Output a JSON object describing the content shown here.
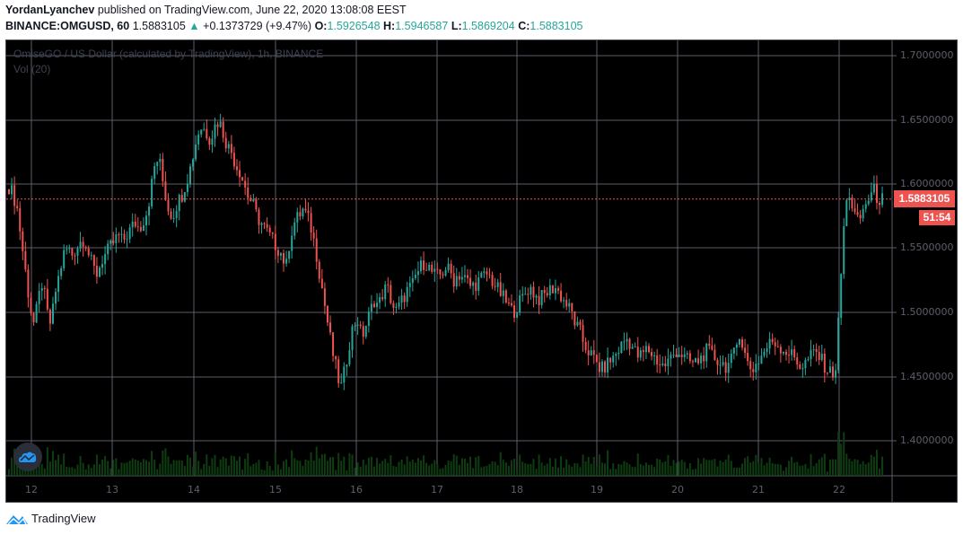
{
  "header": {
    "author": "YordanLyanchev",
    "published_text": "published on TradingView.com, June 22, 2020 13:08:08 EEST",
    "symbol": "BINANCE:OMGUSD, 60",
    "last": "1.5883105",
    "change": "+0.1373729 (+9.47%)",
    "o_label": "O:",
    "o": "1.5926548",
    "h_label": "H:",
    "h": "1.5946587",
    "l_label": "L:",
    "l": "1.5869204",
    "c_label": "C:",
    "c": "1.5883105",
    "up_arrow": "▲"
  },
  "legend": {
    "series_title": "OmiseGO / US Dollar (calculated by TradingView), 1h, BINANCE",
    "volume_title": "Vol (20)"
  },
  "price_axis": {
    "ticks": [
      "1.7000000",
      "1.6500000",
      "1.6000000",
      "1.5500000",
      "1.5000000",
      "1.4500000",
      "1.4000000"
    ],
    "last_price_label": "1.5883105",
    "countdown": "51:54"
  },
  "time_axis": {
    "ticks": [
      "12",
      "13",
      "14",
      "15",
      "16",
      "17",
      "18",
      "19",
      "20",
      "21",
      "22"
    ]
  },
  "colors": {
    "up": "#26a69a",
    "down": "#ef5350",
    "grid": "#5d5d6a",
    "background": "#000000",
    "volume": "#0f3d12"
  },
  "footer": {
    "brand": "TradingView"
  },
  "chart_data": {
    "type": "candlestick",
    "title": "OmiseGO / US Dollar (calculated by TradingView), 1h, BINANCE",
    "symbol": "BINANCE:OMGUSD",
    "interval": "60",
    "xlabel": "",
    "ylabel": "",
    "ylim": [
      1.37,
      1.72
    ],
    "x_ticks": [
      "12",
      "13",
      "14",
      "15",
      "16",
      "17",
      "18",
      "19",
      "20",
      "21",
      "22"
    ],
    "y_ticks": [
      1.7,
      1.65,
      1.6,
      1.55,
      1.5,
      1.45,
      1.4
    ],
    "grid": true,
    "last_price": 1.5883105,
    "ohlc_last": {
      "open": 1.5926548,
      "high": 1.5946587,
      "low": 1.5869204,
      "close": 1.5883105
    },
    "change": 0.1373729,
    "change_pct": 9.47,
    "volume_indicator": "Vol (20)",
    "approx_closes_by_day": [
      {
        "day": "12",
        "close": 1.545
      },
      {
        "day": "13",
        "close": 1.575
      },
      {
        "day": "14",
        "close": 1.625
      },
      {
        "day": "15",
        "close": 1.545
      },
      {
        "day": "16",
        "close": 1.525
      },
      {
        "day": "17",
        "close": 1.528
      },
      {
        "day": "18",
        "close": 1.515
      },
      {
        "day": "19",
        "close": 1.465
      },
      {
        "day": "20",
        "close": 1.462
      },
      {
        "day": "21",
        "close": 1.475
      },
      {
        "day": "22",
        "close": 1.588
      }
    ],
    "path": [
      1.598,
      1.592,
      1.58,
      1.555,
      1.53,
      1.505,
      1.49,
      1.51,
      1.525,
      1.5,
      1.49,
      1.515,
      1.53,
      1.545,
      1.55,
      1.545,
      1.55,
      1.555,
      1.558,
      1.545,
      1.535,
      1.53,
      1.54,
      1.545,
      1.55,
      1.555,
      1.56,
      1.555,
      1.56,
      1.565,
      1.57,
      1.565,
      1.572,
      1.58,
      1.6,
      1.62,
      1.615,
      1.595,
      1.58,
      1.575,
      1.585,
      1.59,
      1.6,
      1.61,
      1.625,
      1.64,
      1.645,
      1.64,
      1.635,
      1.645,
      1.65,
      1.64,
      1.63,
      1.625,
      1.615,
      1.61,
      1.6,
      1.59,
      1.585,
      1.575,
      1.57,
      1.565,
      1.56,
      1.555,
      1.55,
      1.545,
      1.535,
      1.56,
      1.57,
      1.575,
      1.58,
      1.575,
      1.565,
      1.55,
      1.53,
      1.51,
      1.49,
      1.47,
      1.455,
      1.44,
      1.455,
      1.475,
      1.49,
      1.495,
      1.48,
      1.49,
      1.5,
      1.51,
      1.505,
      1.515,
      1.52,
      1.51,
      1.5,
      1.505,
      1.512,
      1.518,
      1.52,
      1.53,
      1.535,
      1.54,
      1.535,
      1.53,
      1.528,
      1.53,
      1.535,
      1.532,
      1.525,
      1.53,
      1.528,
      1.525,
      1.52,
      1.522,
      1.525,
      1.528,
      1.53,
      1.525,
      1.52,
      1.515,
      1.51,
      1.505,
      1.5,
      1.505,
      1.51,
      1.515,
      1.52,
      1.515,
      1.51,
      1.512,
      1.515,
      1.518,
      1.52,
      1.515,
      1.51,
      1.505,
      1.5,
      1.49,
      1.485,
      1.475,
      1.47,
      1.465,
      1.46,
      1.455,
      1.458,
      1.462,
      1.465,
      1.47,
      1.475,
      1.48,
      1.476,
      1.47,
      1.465,
      1.468,
      1.472,
      1.468,
      1.464,
      1.46,
      1.458,
      1.462,
      1.466,
      1.47,
      1.468,
      1.464,
      1.462,
      1.46,
      1.462,
      1.465,
      1.47,
      1.468,
      1.465,
      1.462,
      1.46,
      1.458,
      1.462,
      1.47,
      1.485,
      1.47,
      1.46,
      1.455,
      1.46,
      1.465,
      1.47,
      1.475,
      1.478,
      1.475,
      1.472,
      1.47,
      1.468,
      1.465,
      1.46,
      1.458,
      1.462,
      1.466,
      1.47,
      1.465,
      1.46,
      1.455,
      1.452,
      1.458,
      1.52,
      1.575,
      1.595,
      1.58,
      1.57,
      1.575,
      1.585,
      1.59,
      1.595,
      1.588,
      1.5883
    ]
  }
}
